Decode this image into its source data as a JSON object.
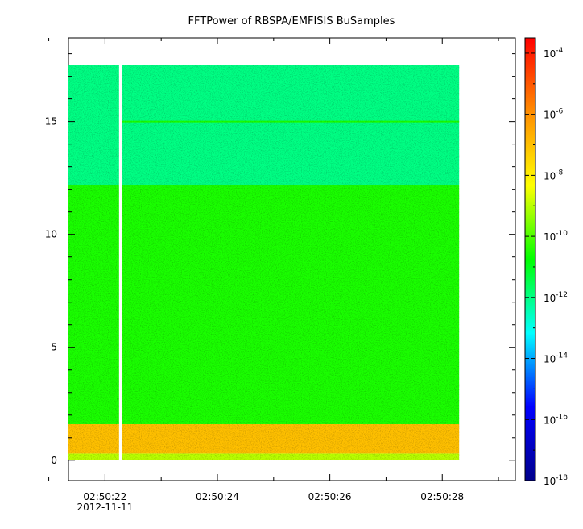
{
  "chart_data": {
    "type": "heatmap",
    "title": "FFTPower of RBSPA/EMFISIS  BuSamples",
    "xlabel": "",
    "ylabel": "",
    "x_ticks": [
      {
        "value": 22,
        "label": "02:50:22"
      },
      {
        "value": 24,
        "label": "02:50:24"
      },
      {
        "value": 26,
        "label": "02:50:26"
      },
      {
        "value": 28,
        "label": "02:50:28"
      }
    ],
    "x_minor_ticks": [
      21,
      23,
      25,
      27,
      29
    ],
    "x_sublabel": "2012-11-11",
    "xlim": [
      21.35,
      29.3
    ],
    "data_x_range": [
      21.35,
      28.3
    ],
    "gap_x_range": [
      22.25,
      22.3
    ],
    "y_ticks": [
      {
        "value": 0,
        "label": "0"
      },
      {
        "value": 5,
        "label": "5"
      },
      {
        "value": 10,
        "label": "10"
      },
      {
        "value": 15,
        "label": "15"
      }
    ],
    "ylim": [
      -0.9,
      18.7
    ],
    "data_y_range": [
      0,
      17.5
    ],
    "bands": [
      {
        "y": [
          0,
          0.3
        ],
        "log_power": -9
      },
      {
        "y": [
          0.3,
          1.6
        ],
        "log_power": -7
      },
      {
        "y": [
          1.6,
          12.2
        ],
        "log_power": -10.5
      },
      {
        "y": [
          12.2,
          17.5
        ],
        "log_power": -12
      }
    ],
    "line_feature": {
      "y": 15.0,
      "log_power": -10.5
    },
    "colorbar": {
      "scale": "log",
      "range_exp": [
        -18,
        -3.5
      ],
      "ticks": [
        {
          "base": "10",
          "exp": "-4",
          "value": -4
        },
        {
          "base": "10",
          "exp": "-6",
          "value": -6
        },
        {
          "base": "10",
          "exp": "-8",
          "value": -8
        },
        {
          "base": "10",
          "exp": "-10",
          "value": -10
        },
        {
          "base": "10",
          "exp": "-12",
          "value": -12
        },
        {
          "base": "10",
          "exp": "-14",
          "value": -14
        },
        {
          "base": "10",
          "exp": "-16",
          "value": -16
        },
        {
          "base": "10",
          "exp": "-18",
          "value": -18
        }
      ],
      "colormap": [
        "#00008b",
        "#0000ff",
        "#00ffff",
        "#00ff00",
        "#ffff00",
        "#ff8c00",
        "#ff0000"
      ]
    },
    "grid": false,
    "legend": "none"
  }
}
